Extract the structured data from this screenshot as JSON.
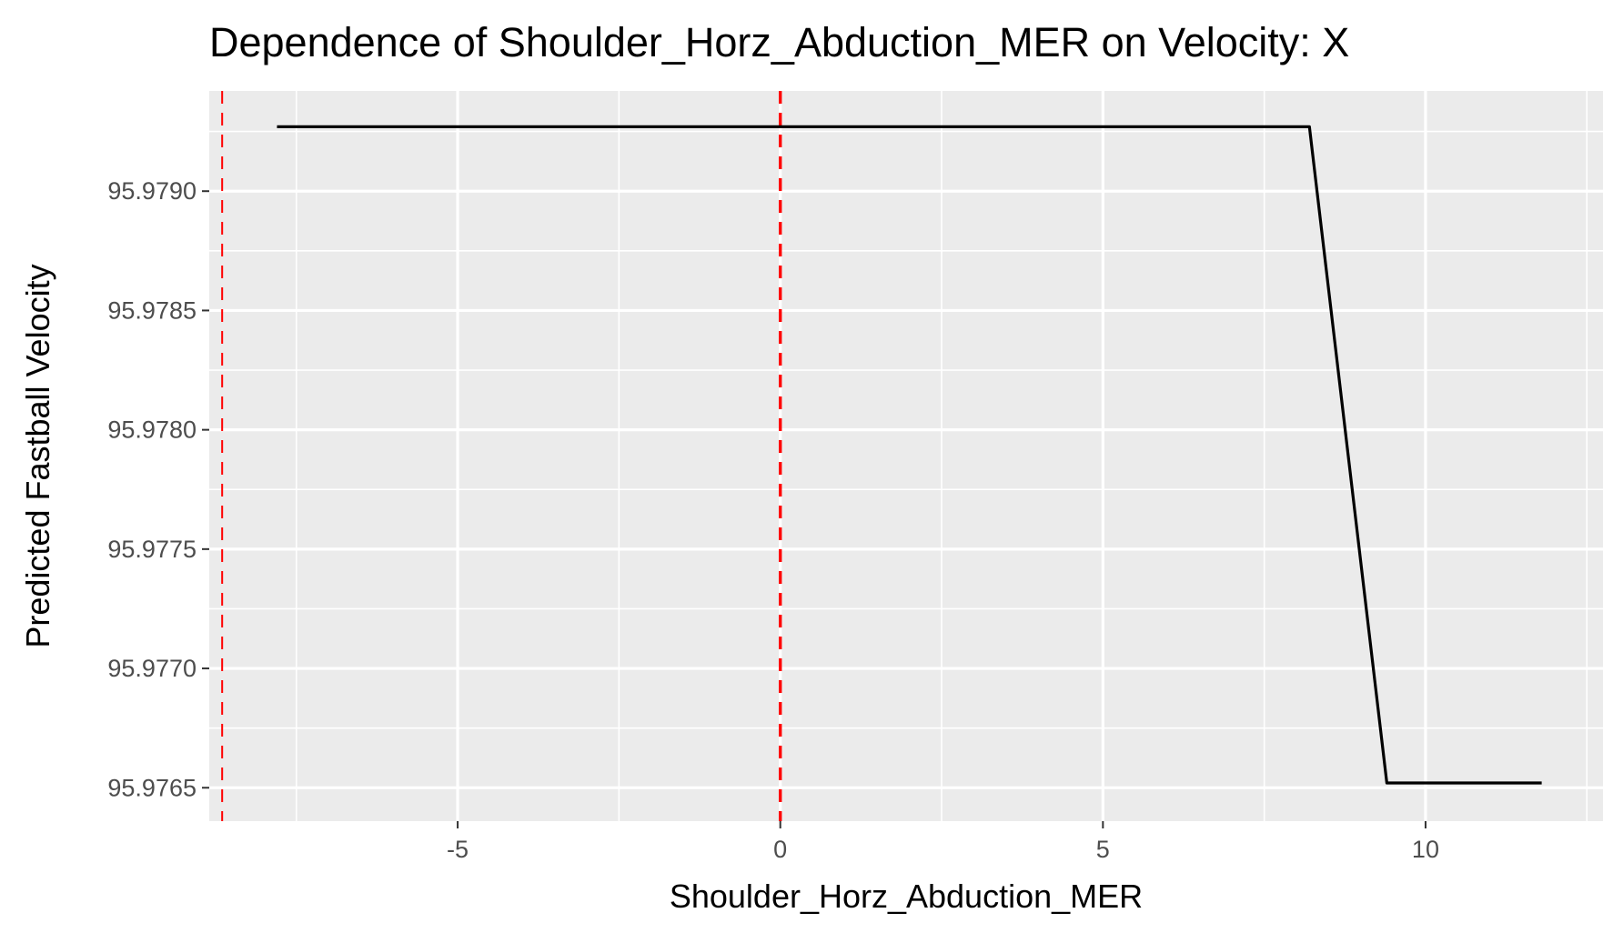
{
  "chart_data": {
    "type": "line",
    "title": "Dependence of Shoulder_Horz_Abduction_MER on Velocity: X",
    "xlabel": "Shoulder_Horz_Abduction_MER",
    "ylabel": "Predicted Fastball Velocity",
    "xlim": [
      -8.85,
      12.75
    ],
    "ylim": [
      95.97636,
      95.97942
    ],
    "x_ticks": [
      -5,
      0,
      5,
      10
    ],
    "x_tick_labels": [
      "-5",
      "0",
      "5",
      "10"
    ],
    "y_ticks": [
      95.9765,
      95.977,
      95.9775,
      95.978,
      95.9785,
      95.979
    ],
    "y_tick_labels": [
      "95.9765",
      "95.9770",
      "95.9775",
      "95.9780",
      "95.9785",
      "95.9790"
    ],
    "grid": true,
    "series": [
      {
        "color": "#000000",
        "x": [
          -7.8,
          8.2,
          9.4,
          11.8
        ],
        "y": [
          95.97927,
          95.97927,
          95.97652,
          95.97652
        ]
      }
    ],
    "vlines": [
      {
        "x": -8.65,
        "color": "#ff0000",
        "style": "dashed"
      },
      {
        "x": 0,
        "color": "#ff0000",
        "style": "dashed"
      }
    ],
    "panel_background": "#ebebeb",
    "grid_color": "#ffffff"
  }
}
